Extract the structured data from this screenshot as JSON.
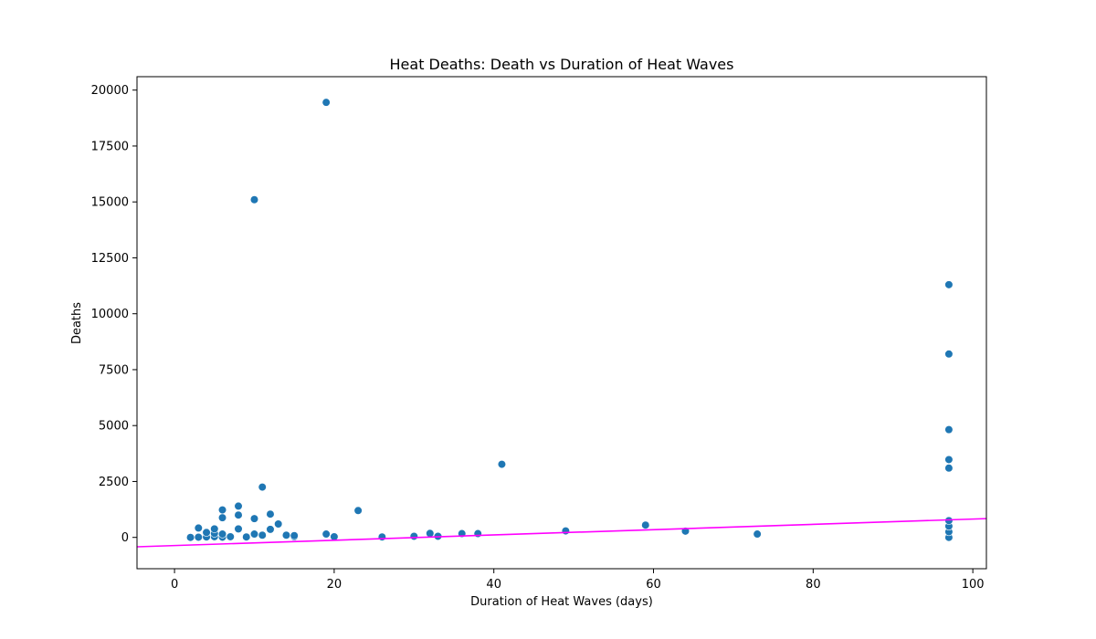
{
  "chart_data": {
    "type": "scatter",
    "title": "Heat Deaths: Death vs Duration of Heat Waves",
    "xlabel": "Duration of Heat Waves (days)",
    "ylabel": "Deaths",
    "xlim": [
      -4.7,
      101.7
    ],
    "ylim": [
      -1400,
      20600
    ],
    "xticks": [
      0,
      20,
      40,
      60,
      80,
      100
    ],
    "yticks": [
      0,
      2500,
      5000,
      7500,
      10000,
      12500,
      15000,
      17500,
      20000
    ],
    "grid": false,
    "legend": "none",
    "colors": {
      "points": "#1f77b4",
      "trend_line": "#ff00ff"
    },
    "points": [
      {
        "x": 2,
        "y": 0
      },
      {
        "x": 3,
        "y": 10
      },
      {
        "x": 3,
        "y": 420
      },
      {
        "x": 4,
        "y": 20
      },
      {
        "x": 4,
        "y": 220
      },
      {
        "x": 5,
        "y": 30
      },
      {
        "x": 5,
        "y": 180
      },
      {
        "x": 5,
        "y": 380
      },
      {
        "x": 6,
        "y": 10
      },
      {
        "x": 6,
        "y": 150
      },
      {
        "x": 6,
        "y": 880
      },
      {
        "x": 6,
        "y": 1230
      },
      {
        "x": 7,
        "y": 30
      },
      {
        "x": 8,
        "y": 380
      },
      {
        "x": 8,
        "y": 1000
      },
      {
        "x": 8,
        "y": 1400
      },
      {
        "x": 9,
        "y": 20
      },
      {
        "x": 10,
        "y": 150
      },
      {
        "x": 10,
        "y": 840
      },
      {
        "x": 10,
        "y": 15100
      },
      {
        "x": 11,
        "y": 100
      },
      {
        "x": 11,
        "y": 2250
      },
      {
        "x": 12,
        "y": 360
      },
      {
        "x": 12,
        "y": 1040
      },
      {
        "x": 13,
        "y": 600
      },
      {
        "x": 14,
        "y": 100
      },
      {
        "x": 15,
        "y": 30
      },
      {
        "x": 15,
        "y": 80
      },
      {
        "x": 19,
        "y": 150
      },
      {
        "x": 19,
        "y": 19450
      },
      {
        "x": 20,
        "y": 30
      },
      {
        "x": 23,
        "y": 1200
      },
      {
        "x": 26,
        "y": 20
      },
      {
        "x": 30,
        "y": 50
      },
      {
        "x": 32,
        "y": 180
      },
      {
        "x": 33,
        "y": 50
      },
      {
        "x": 36,
        "y": 170
      },
      {
        "x": 38,
        "y": 170
      },
      {
        "x": 41,
        "y": 3270
      },
      {
        "x": 49,
        "y": 290
      },
      {
        "x": 59,
        "y": 550
      },
      {
        "x": 64,
        "y": 280
      },
      {
        "x": 73,
        "y": 150
      },
      {
        "x": 97,
        "y": 0
      },
      {
        "x": 97,
        "y": 250
      },
      {
        "x": 97,
        "y": 500
      },
      {
        "x": 97,
        "y": 750
      },
      {
        "x": 97,
        "y": 3100
      },
      {
        "x": 97,
        "y": 3480
      },
      {
        "x": 97,
        "y": 4820
      },
      {
        "x": 97,
        "y": 8200
      },
      {
        "x": 97,
        "y": 11300
      }
    ],
    "trend_line": {
      "x": [
        -4.7,
        101.7
      ],
      "y": [
        -420,
        840
      ]
    }
  }
}
